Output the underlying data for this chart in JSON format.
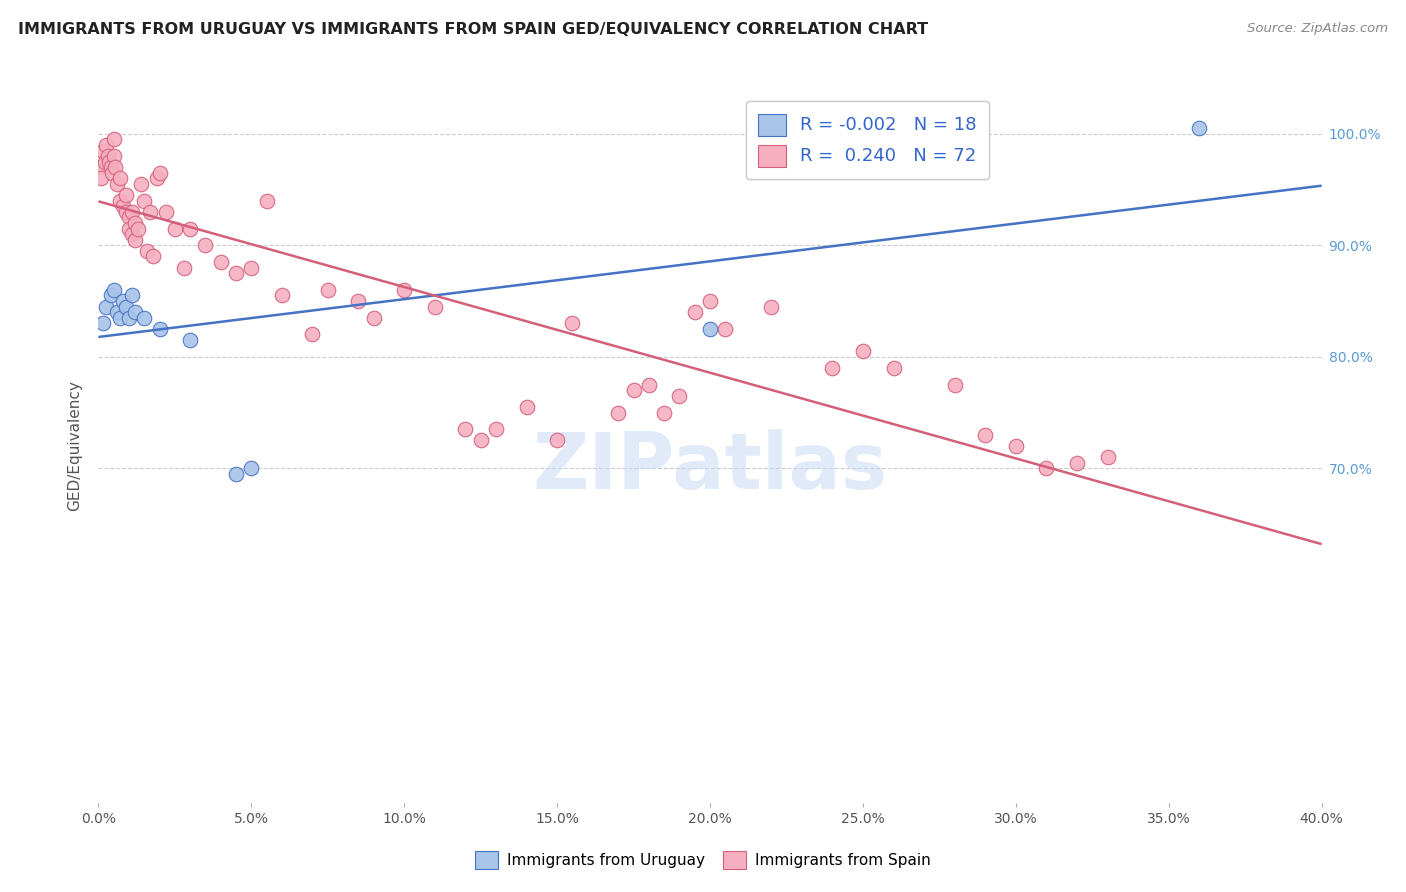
{
  "title": "IMMIGRANTS FROM URUGUAY VS IMMIGRANTS FROM SPAIN GED/EQUIVALENCY CORRELATION CHART",
  "source": "Source: ZipAtlas.com",
  "ylabel": "GED/Equivalency",
  "x_ticks": [
    0.0,
    5.0,
    10.0,
    15.0,
    20.0,
    25.0,
    30.0,
    35.0,
    40.0
  ],
  "y_ticks_right": [
    70.0,
    80.0,
    90.0,
    100.0
  ],
  "xlim": [
    0.0,
    40.0
  ],
  "ylim": [
    40.0,
    104.0
  ],
  "legend_r_uruguay": "-0.002",
  "legend_n_uruguay": "18",
  "legend_r_spain": "0.240",
  "legend_n_spain": "72",
  "color_uruguay": "#a8c4e8",
  "color_spain": "#f5afc0",
  "trendline_uruguay": "#4472c4",
  "trendline_spain": "#d45f7a",
  "watermark_text": "ZIPatlas",
  "legend_label_uruguay": "Immigrants from Uruguay",
  "legend_label_spain": "Immigrants from Spain",
  "uruguay_x": [
    0.15,
    0.25,
    0.4,
    0.5,
    0.6,
    0.7,
    0.8,
    0.9,
    1.0,
    1.1,
    1.2,
    1.5,
    2.0,
    3.0,
    4.5,
    5.0,
    20.0,
    36.0
  ],
  "uruguay_y": [
    83.0,
    84.5,
    85.5,
    86.0,
    84.0,
    83.5,
    85.0,
    84.5,
    83.5,
    85.5,
    84.0,
    83.5,
    82.5,
    81.5,
    69.5,
    70.0,
    82.5,
    100.5
  ],
  "spain_x": [
    0.05,
    0.1,
    0.15,
    0.2,
    0.25,
    0.3,
    0.35,
    0.4,
    0.45,
    0.5,
    0.5,
    0.55,
    0.6,
    0.7,
    0.7,
    0.8,
    0.9,
    0.9,
    1.0,
    1.0,
    1.1,
    1.1,
    1.2,
    1.2,
    1.3,
    1.4,
    1.5,
    1.6,
    1.7,
    1.8,
    1.9,
    2.0,
    2.2,
    2.5,
    2.8,
    3.0,
    3.5,
    4.0,
    4.5,
    5.0,
    5.5,
    6.0,
    7.0,
    7.5,
    8.5,
    9.0,
    10.0,
    11.0,
    12.0,
    12.5,
    13.0,
    14.0,
    15.0,
    15.5,
    17.0,
    17.5,
    18.0,
    18.5,
    19.0,
    19.5,
    20.0,
    20.5,
    22.0,
    24.0,
    25.0,
    26.0,
    28.0,
    29.0,
    30.0,
    31.0,
    32.0,
    33.0
  ],
  "spain_y": [
    97.0,
    96.0,
    98.5,
    97.5,
    99.0,
    98.0,
    97.5,
    97.0,
    96.5,
    98.0,
    99.5,
    97.0,
    95.5,
    94.0,
    96.0,
    93.5,
    93.0,
    94.5,
    92.5,
    91.5,
    91.0,
    93.0,
    92.0,
    90.5,
    91.5,
    95.5,
    94.0,
    89.5,
    93.0,
    89.0,
    96.0,
    96.5,
    93.0,
    91.5,
    88.0,
    91.5,
    90.0,
    88.5,
    87.5,
    88.0,
    94.0,
    85.5,
    82.0,
    86.0,
    85.0,
    83.5,
    86.0,
    84.5,
    73.5,
    72.5,
    73.5,
    75.5,
    72.5,
    83.0,
    75.0,
    77.0,
    77.5,
    75.0,
    76.5,
    84.0,
    85.0,
    82.5,
    84.5,
    79.0,
    80.5,
    79.0,
    77.5,
    73.0,
    72.0,
    70.0,
    70.5,
    71.0
  ]
}
